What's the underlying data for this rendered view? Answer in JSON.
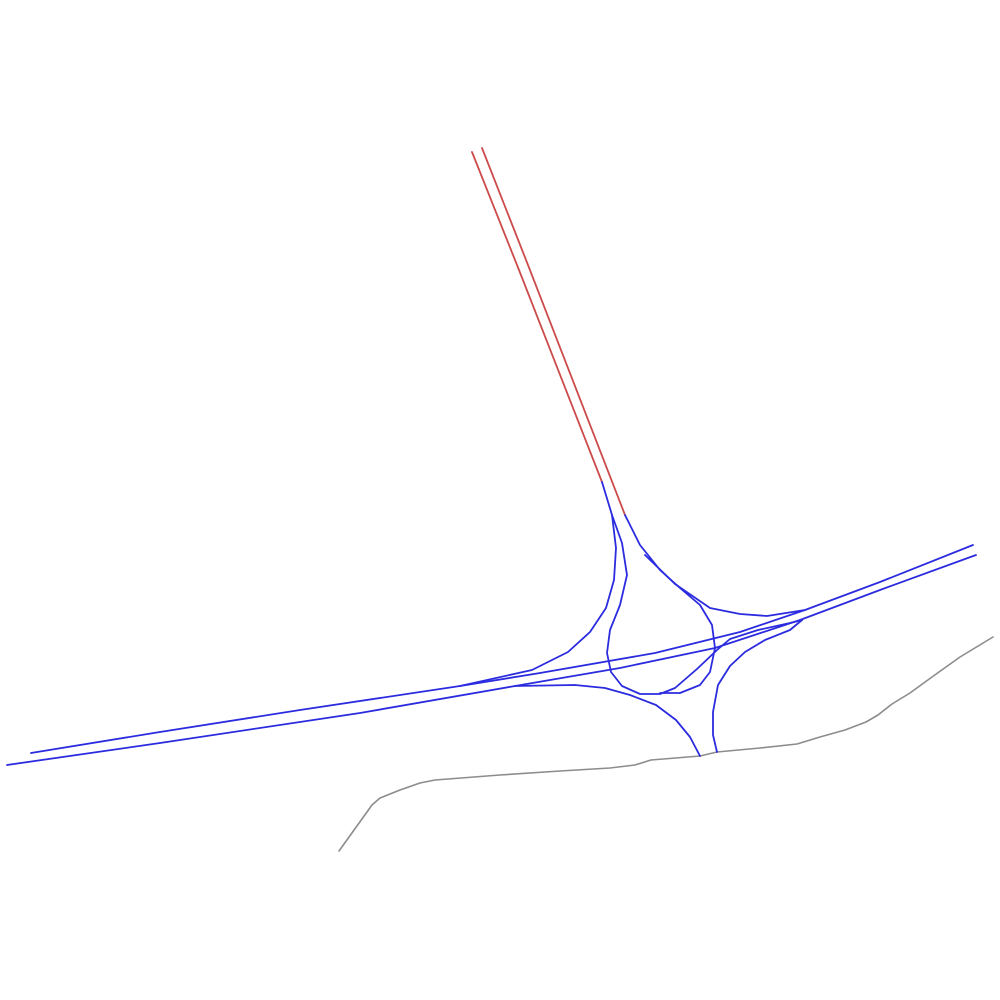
{
  "map": {
    "type": "road-network",
    "colors": {
      "background": "#ffffff",
      "motorway": "#2b2bdf",
      "trunk": "#cc4b4b",
      "minor": "#8c8c8c"
    },
    "road_classes": [
      "motorway",
      "trunk",
      "minor"
    ]
  }
}
